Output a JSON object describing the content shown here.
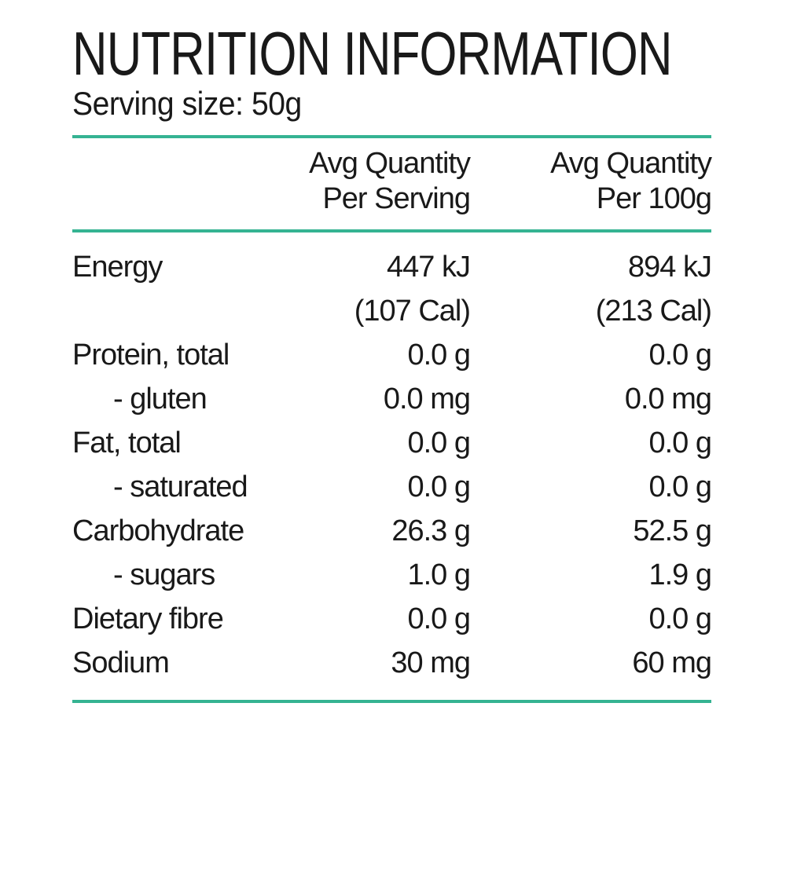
{
  "title": "NUTRITION INFORMATION",
  "serving_size": "Serving size: 50g",
  "table": {
    "header": {
      "per_serving": {
        "line1": "Avg Quantity",
        "line2": "Per Serving"
      },
      "per_100g": {
        "line1": "Avg Quantity",
        "line2": "Per 100g"
      }
    },
    "rows": [
      {
        "label": "Energy",
        "per_serving": "447 kJ",
        "per_100g": "894 kJ"
      },
      {
        "label": "",
        "per_serving": "(107 Cal)",
        "per_100g": "(213 Cal)"
      },
      {
        "label": "Protein, total",
        "per_serving": "0.0 g",
        "per_100g": "0.0 g"
      },
      {
        "label": "- gluten",
        "per_serving": "0.0 mg",
        "per_100g": "0.0 mg"
      },
      {
        "label": "Fat, total",
        "per_serving": "0.0 g",
        "per_100g": "0.0 g"
      },
      {
        "label": "- saturated",
        "per_serving": "0.0 g",
        "per_100g": "0.0 g"
      },
      {
        "label": "Carbohydrate",
        "per_serving": "26.3 g",
        "per_100g": "52.5 g"
      },
      {
        "label": "- sugars",
        "per_serving": "1.0 g",
        "per_100g": "1.9 g"
      },
      {
        "label": "Dietary fibre",
        "per_serving": "0.0 g",
        "per_100g": "0.0 g"
      },
      {
        "label": "Sodium",
        "per_serving": "30 mg",
        "per_100g": "60 mg"
      }
    ]
  },
  "colors": {
    "accent_line": "#35b392",
    "text": "#191919",
    "background": "#ffffff"
  }
}
